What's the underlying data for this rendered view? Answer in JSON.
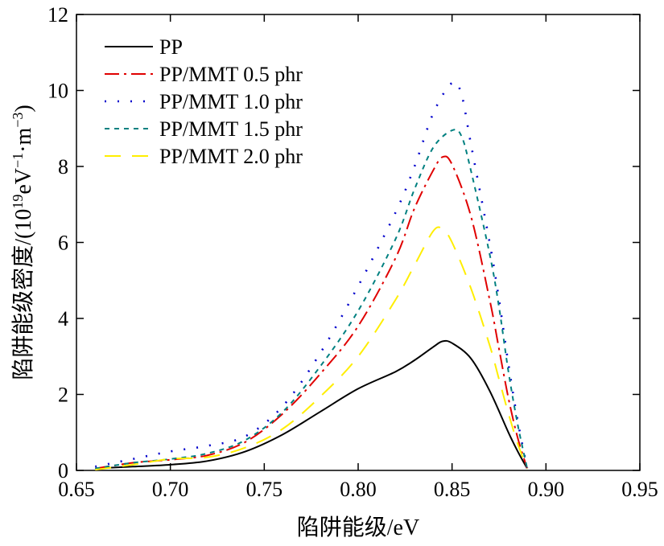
{
  "chart_data": {
    "type": "line",
    "xlabel": "陷阱能级/eV",
    "ylabel_main": "陷阱能级密度/(10",
    "ylabel_sup1": "19",
    "ylabel_mid1": "eV",
    "ylabel_sup2": "−1",
    "ylabel_mid2": "·m",
    "ylabel_sup3": "−3",
    "ylabel_end": ")",
    "xlim": [
      0.65,
      0.95
    ],
    "ylim": [
      0,
      12
    ],
    "xticks": [
      0.65,
      0.7,
      0.75,
      0.8,
      0.85,
      0.9,
      0.95
    ],
    "xtick_labels": [
      "0.65",
      "0.70",
      "0.75",
      "0.80",
      "0.85",
      "0.90",
      "0.95"
    ],
    "yticks": [
      0,
      2,
      4,
      6,
      8,
      10,
      12
    ],
    "ytick_labels": [
      "0",
      "2",
      "4",
      "6",
      "8",
      "10",
      "12"
    ],
    "grid": false,
    "legend_position": "top-left",
    "series": [
      {
        "name": "PP",
        "color": "#000000",
        "dash": "solid",
        "points": [
          [
            0.66,
            0.05
          ],
          [
            0.68,
            0.1
          ],
          [
            0.7,
            0.15
          ],
          [
            0.72,
            0.25
          ],
          [
            0.74,
            0.5
          ],
          [
            0.76,
            0.95
          ],
          [
            0.78,
            1.55
          ],
          [
            0.8,
            2.15
          ],
          [
            0.82,
            2.6
          ],
          [
            0.83,
            2.9
          ],
          [
            0.84,
            3.25
          ],
          [
            0.845,
            3.4
          ],
          [
            0.85,
            3.35
          ],
          [
            0.86,
            2.95
          ],
          [
            0.87,
            2.1
          ],
          [
            0.88,
            1.0
          ],
          [
            0.885,
            0.5
          ],
          [
            0.89,
            0.05
          ]
        ]
      },
      {
        "name": "PP/MMT 0.5 phr",
        "color": "#e00000",
        "dash": "dashdot",
        "points": [
          [
            0.66,
            0.05
          ],
          [
            0.68,
            0.2
          ],
          [
            0.7,
            0.28
          ],
          [
            0.72,
            0.4
          ],
          [
            0.74,
            0.75
          ],
          [
            0.76,
            1.5
          ],
          [
            0.78,
            2.55
          ],
          [
            0.8,
            3.8
          ],
          [
            0.82,
            5.6
          ],
          [
            0.83,
            6.9
          ],
          [
            0.84,
            7.9
          ],
          [
            0.845,
            8.25
          ],
          [
            0.85,
            8.05
          ],
          [
            0.86,
            6.7
          ],
          [
            0.87,
            4.5
          ],
          [
            0.875,
            3.2
          ],
          [
            0.88,
            1.9
          ],
          [
            0.885,
            0.85
          ],
          [
            0.89,
            0.05
          ]
        ]
      },
      {
        "name": "PP/MMT 1.0 phr",
        "color": "#0000cc",
        "dash": "dotted",
        "points": [
          [
            0.66,
            0.1
          ],
          [
            0.68,
            0.3
          ],
          [
            0.7,
            0.5
          ],
          [
            0.72,
            0.65
          ],
          [
            0.74,
            0.9
          ],
          [
            0.76,
            1.7
          ],
          [
            0.78,
            3.1
          ],
          [
            0.8,
            4.85
          ],
          [
            0.82,
            6.8
          ],
          [
            0.83,
            8.0
          ],
          [
            0.84,
            9.4
          ],
          [
            0.85,
            10.2
          ],
          [
            0.855,
            9.9
          ],
          [
            0.86,
            8.6
          ],
          [
            0.87,
            6.0
          ],
          [
            0.875,
            4.5
          ],
          [
            0.88,
            2.8
          ],
          [
            0.885,
            1.3
          ],
          [
            0.89,
            0.05
          ]
        ]
      },
      {
        "name": "PP/MMT 1.5 phr",
        "color": "#008080",
        "dash": "dashed",
        "points": [
          [
            0.66,
            0.05
          ],
          [
            0.68,
            0.2
          ],
          [
            0.7,
            0.3
          ],
          [
            0.72,
            0.45
          ],
          [
            0.74,
            0.8
          ],
          [
            0.76,
            1.55
          ],
          [
            0.78,
            2.75
          ],
          [
            0.8,
            4.2
          ],
          [
            0.82,
            6.1
          ],
          [
            0.83,
            7.4
          ],
          [
            0.84,
            8.5
          ],
          [
            0.85,
            8.95
          ],
          [
            0.855,
            8.8
          ],
          [
            0.86,
            7.9
          ],
          [
            0.87,
            5.7
          ],
          [
            0.875,
            4.3
          ],
          [
            0.88,
            2.6
          ],
          [
            0.885,
            1.2
          ],
          [
            0.89,
            0.05
          ]
        ]
      },
      {
        "name": "PP/MMT 2.0 phr",
        "color": "#ffee00",
        "dash": "longdash",
        "points": [
          [
            0.66,
            0.02
          ],
          [
            0.68,
            0.15
          ],
          [
            0.7,
            0.3
          ],
          [
            0.72,
            0.35
          ],
          [
            0.74,
            0.6
          ],
          [
            0.76,
            1.1
          ],
          [
            0.78,
            1.95
          ],
          [
            0.8,
            3.0
          ],
          [
            0.82,
            4.5
          ],
          [
            0.83,
            5.4
          ],
          [
            0.84,
            6.3
          ],
          [
            0.845,
            6.35
          ],
          [
            0.85,
            6.0
          ],
          [
            0.86,
            4.8
          ],
          [
            0.87,
            3.3
          ],
          [
            0.875,
            2.4
          ],
          [
            0.88,
            1.5
          ],
          [
            0.885,
            0.7
          ],
          [
            0.89,
            0.05
          ]
        ]
      }
    ]
  }
}
